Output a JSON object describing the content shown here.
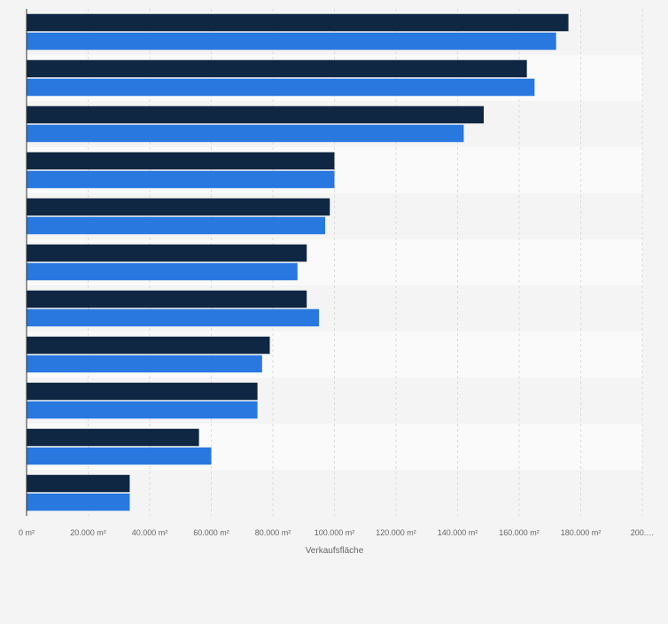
{
  "chart_data": {
    "type": "bar",
    "orientation": "horizontal",
    "title": "",
    "xlabel": "Verkaufsfläche",
    "ylabel": "",
    "xlim": [
      0,
      200000
    ],
    "x_ticks": [
      {
        "value": 0,
        "label": "0 m²"
      },
      {
        "value": 20000,
        "label": "20.000 m²"
      },
      {
        "value": 40000,
        "label": "40.000 m²"
      },
      {
        "value": 60000,
        "label": "60.000 m²"
      },
      {
        "value": 80000,
        "label": "80.000 m²"
      },
      {
        "value": 100000,
        "label": "100.000 m²"
      },
      {
        "value": 120000,
        "label": "120.000 m²"
      },
      {
        "value": 140000,
        "label": "140.000 m²"
      },
      {
        "value": 160000,
        "label": "160.000 m²"
      },
      {
        "value": 180000,
        "label": "180.000 m²"
      },
      {
        "value": 200000,
        "label": "200.…"
      }
    ],
    "grid": true,
    "category_count": 11,
    "series": [
      {
        "color": "#0f2742",
        "values": [
          176000,
          162500,
          148500,
          100000,
          98500,
          91000,
          91000,
          79000,
          75000,
          56000,
          33500
        ]
      },
      {
        "color": "#2878e0",
        "values": [
          172000,
          165000,
          142000,
          100000,
          97000,
          88000,
          95000,
          76500,
          75000,
          60000,
          33500
        ]
      }
    ]
  }
}
